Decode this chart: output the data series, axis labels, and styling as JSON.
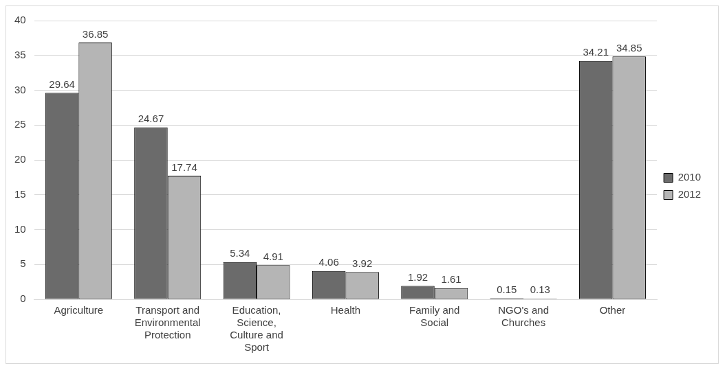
{
  "chart_data": {
    "type": "bar",
    "categories": [
      "Agriculture",
      "Transport and Environmental Protection",
      "Education, Science, Culture and Sport",
      "Health",
      "Family and Social",
      "NGO's and Churches",
      "Other"
    ],
    "series": [
      {
        "name": "2010",
        "color": "#6b6b6b",
        "values": [
          29.64,
          24.67,
          5.34,
          4.06,
          1.92,
          0.15,
          34.21
        ]
      },
      {
        "name": "2012",
        "color": "#b5b5b5",
        "values": [
          36.85,
          17.74,
          4.91,
          3.92,
          1.61,
          0.13,
          34.85
        ]
      }
    ],
    "ylim": [
      0,
      40
    ],
    "yticks": [
      0,
      5,
      10,
      15,
      20,
      25,
      30,
      35,
      40
    ],
    "grid": "y",
    "legend": "right",
    "data_labels": true
  }
}
